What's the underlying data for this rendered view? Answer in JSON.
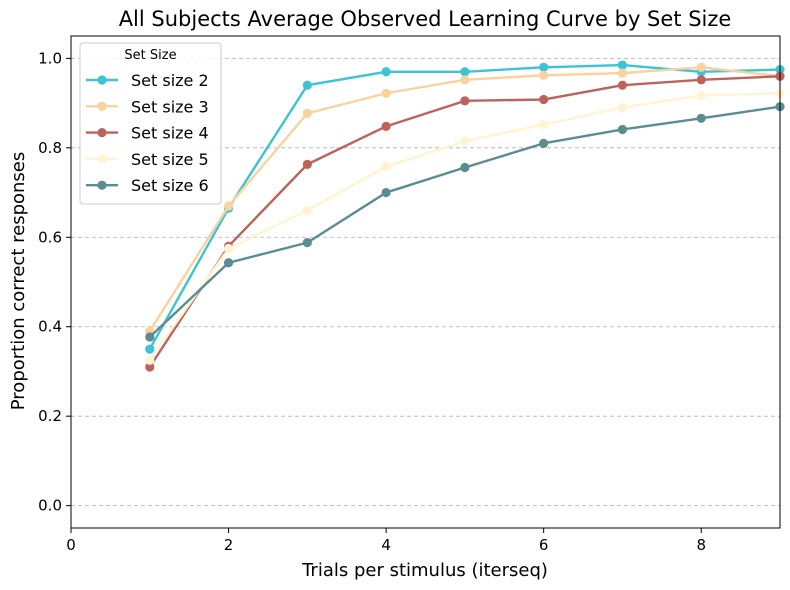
{
  "chart_data": {
    "type": "line",
    "title": "All Subjects Average Observed Learning Curve by Set Size",
    "xlabel": "Trials per stimulus (iterseq)",
    "ylabel": "Proportion correct responses",
    "xlim": [
      0,
      9
    ],
    "ylim": [
      -0.05,
      1.05
    ],
    "xticks": [
      "0",
      "2",
      "4",
      "6",
      "8"
    ],
    "yticks": [
      "0.0",
      "0.2",
      "0.4",
      "0.6",
      "0.8",
      "1.0"
    ],
    "grid": "y-dashed",
    "legend_title": "Set Size",
    "legend_position": "top-left",
    "x": [
      1,
      2,
      3,
      4,
      5,
      6,
      7,
      8,
      9
    ],
    "series": [
      {
        "name": "Set size 2",
        "color": "#3cc4d4",
        "values": [
          0.35,
          0.665,
          0.94,
          0.97,
          0.97,
          0.98,
          0.985,
          0.97,
          0.975
        ]
      },
      {
        "name": "Set size 3",
        "color": "#f9d29d",
        "values": [
          0.39,
          0.67,
          0.877,
          0.922,
          0.952,
          0.962,
          0.967,
          0.98,
          0.96
        ]
      },
      {
        "name": "Set size 4",
        "color": "#bd625c",
        "values": [
          0.31,
          0.58,
          0.763,
          0.848,
          0.905,
          0.908,
          0.94,
          0.952,
          0.96
        ]
      },
      {
        "name": "Set size 5",
        "color": "#fff3d2",
        "values": [
          0.325,
          0.575,
          0.66,
          0.758,
          0.815,
          0.852,
          0.89,
          0.917,
          0.922
        ]
      },
      {
        "name": "Set size 6",
        "color": "#5b8c91",
        "values": [
          0.377,
          0.543,
          0.588,
          0.7,
          0.756,
          0.81,
          0.841,
          0.866,
          0.892
        ]
      }
    ]
  }
}
